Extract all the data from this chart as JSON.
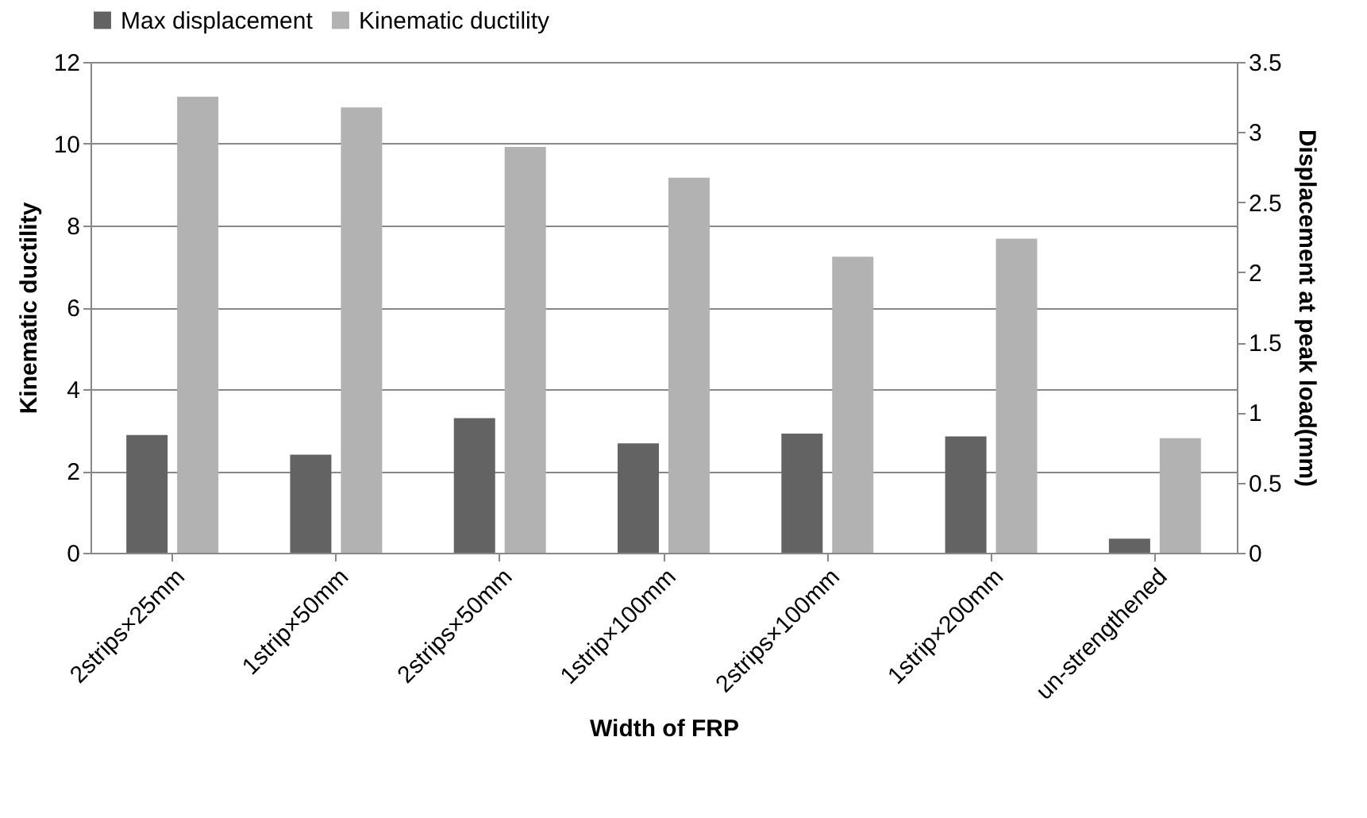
{
  "chart_data": {
    "type": "bar",
    "xlabel": "Width of FRP",
    "ylabel": "Kinematic ductility",
    "y2label": "Displacement at peak load(mm)",
    "categories": [
      "2strips×25mm",
      "1strip×50mm",
      "2strips×50mm",
      "1strip×100mm",
      "2strips×100mm",
      "1strip×200mm",
      "un-strengthened"
    ],
    "series": [
      {
        "name": "Max displacement",
        "color": "#636363",
        "axis": "y2",
        "values": [
          0.84,
          0.7,
          0.96,
          0.78,
          0.85,
          0.83,
          0.1
        ]
      },
      {
        "name": "Kinematic ductility",
        "color": "#b2b2b2",
        "values": [
          11.15,
          10.89,
          9.92,
          9.17,
          7.24,
          7.68,
          2.8
        ]
      }
    ],
    "ylim": [
      0,
      12
    ],
    "yticks": [
      0,
      2,
      4,
      6,
      8,
      10,
      12
    ],
    "y2lim": [
      0,
      3.5
    ],
    "y2ticks": [
      0,
      0.5,
      1,
      1.5,
      2,
      2.5,
      3,
      3.5
    ],
    "grid": "y",
    "legend": "top"
  }
}
